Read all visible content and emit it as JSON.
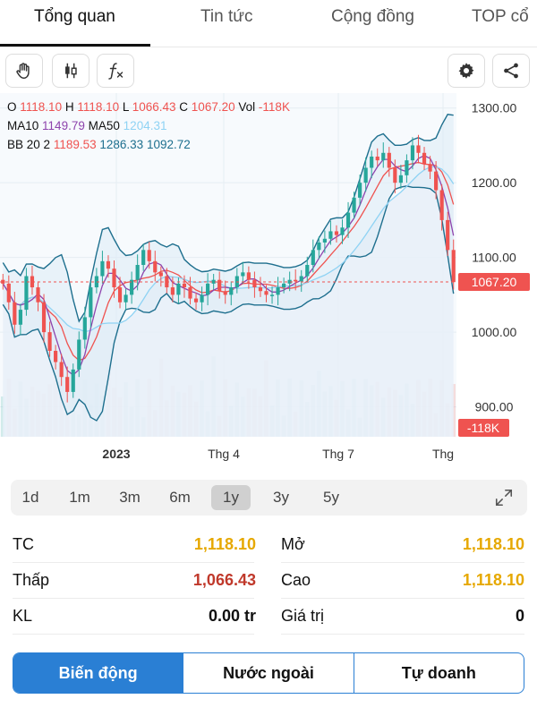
{
  "tabs": [
    {
      "label": "Tổng quan",
      "active": true
    },
    {
      "label": "Tin tức",
      "active": false
    },
    {
      "label": "Cộng đồng",
      "active": false
    },
    {
      "label": "TOP cổ",
      "active": false
    }
  ],
  "toolbar": {
    "tools": [
      "hand-icon",
      "candlestick-icon",
      "function-icon"
    ],
    "actions": [
      "gear-icon",
      "share-icon"
    ]
  },
  "legend": {
    "ohlc": {
      "o_label": "O",
      "o": "1118.10",
      "h_label": "H",
      "h": "1118.10",
      "l_label": "L",
      "l": "1066.43",
      "c_label": "C",
      "c": "1067.20",
      "vol_label": "Vol",
      "vol": "-118K"
    },
    "ma": {
      "ma10_label": "MA10",
      "ma10": "1149.79",
      "ma50_label": "MA50",
      "ma50": "1204.31"
    },
    "bb": {
      "label": "BB 20 2",
      "mid": "1189.53",
      "upper": "1286.33",
      "lower": "1092.72"
    }
  },
  "colors": {
    "up": "#26a69a",
    "down": "#ef5350",
    "ma10": "#8e44ad",
    "ma50": "#8fd3f4",
    "bb_mid": "#ef5350",
    "bb_band": "#1e6f8e",
    "accent": "#2a7fd4",
    "yellow": "#e6a800",
    "red": "#c0392b"
  },
  "chart_data": {
    "type": "candlestick",
    "y_ticks": [
      "1300.00",
      "1200.00",
      "1100.00",
      "1000.00",
      "900.00"
    ],
    "x_ticks": [
      "2023",
      "Thg 4",
      "Thg 7",
      "Thg"
    ],
    "last_price_label": "1067.20",
    "last_volume_label": "-118K",
    "last_price": 1067.2,
    "ylim": [
      860,
      1320
    ],
    "close_series": [
      1065,
      1040,
      1010,
      1030,
      1075,
      1060,
      1040,
      1000,
      975,
      960,
      940,
      920,
      950,
      990,
      1020,
      1060,
      1075,
      1095,
      1085,
      1060,
      1040,
      1050,
      1070,
      1090,
      1110,
      1095,
      1080,
      1075,
      1060,
      1050,
      1065,
      1060,
      1045,
      1040,
      1050,
      1065,
      1070,
      1055,
      1050,
      1060,
      1075,
      1080,
      1070,
      1060,
      1055,
      1050,
      1050,
      1060,
      1065,
      1070,
      1068,
      1075,
      1090,
      1110,
      1120,
      1125,
      1135,
      1130,
      1140,
      1160,
      1180,
      1200,
      1220,
      1235,
      1230,
      1240,
      1220,
      1200,
      1210,
      1230,
      1250,
      1240,
      1225,
      1215,
      1190,
      1150,
      1110,
      1067
    ]
  },
  "ranges": [
    {
      "label": "1d",
      "active": false
    },
    {
      "label": "1m",
      "active": false
    },
    {
      "label": "3m",
      "active": false
    },
    {
      "label": "6m",
      "active": false
    },
    {
      "label": "1y",
      "active": true
    },
    {
      "label": "3y",
      "active": false
    },
    {
      "label": "5y",
      "active": false
    }
  ],
  "stats": {
    "tc_label": "TC",
    "tc": "1,118.10",
    "mo_label": "Mở",
    "mo": "1,118.10",
    "thap_label": "Thấp",
    "thap": "1,066.43",
    "cao_label": "Cao",
    "cao": "1,118.10",
    "kl_label": "KL",
    "kl": "0.00 tr",
    "giatri_label": "Giá trị",
    "giatri": "0"
  },
  "segments": [
    "Biến động",
    "Nước ngoài",
    "Tự doanh"
  ]
}
